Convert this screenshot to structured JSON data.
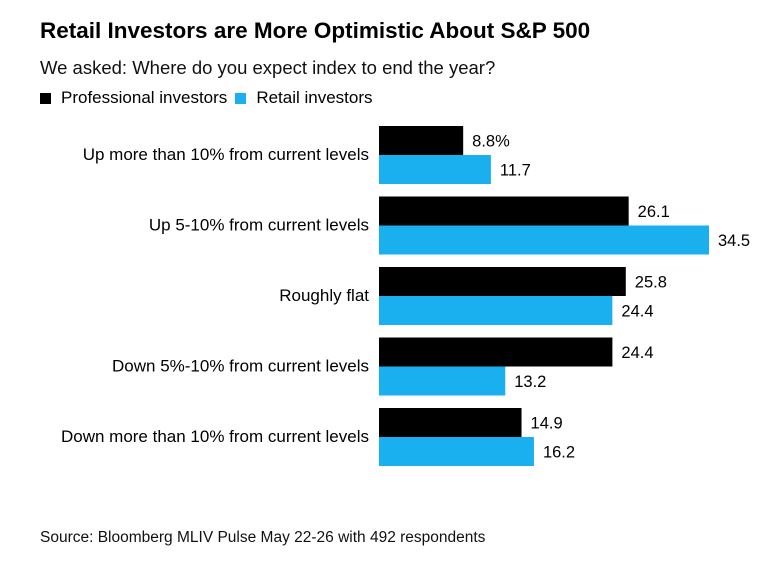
{
  "chart_data": {
    "type": "bar",
    "orientation": "horizontal",
    "title": "Retail Investors are More Optimistic About S&P 500",
    "subtitle": "We asked: Where do you expect index to end the year?",
    "categories": [
      "Up more than 10% from current levels",
      "Up 5-10% from current levels",
      "Roughly flat",
      "Down 5%-10% from current levels",
      "Down more than 10% from current levels"
    ],
    "series": [
      {
        "name": "Professional investors",
        "color": "#000000",
        "values": [
          8.8,
          26.1,
          25.8,
          24.4,
          14.9
        ],
        "labels": [
          "8.8%",
          "26.1",
          "25.8",
          "24.4",
          "14.9"
        ]
      },
      {
        "name": "Retail investors",
        "color": "#1ab0f0",
        "values": [
          11.7,
          34.5,
          24.4,
          13.2,
          16.2
        ],
        "labels": [
          "11.7",
          "34.5",
          "24.4",
          "13.2",
          "16.2"
        ]
      }
    ],
    "legend_position": "top-left",
    "grid": false,
    "xlim": [
      0,
      34.5
    ]
  },
  "source": "Source: Bloomberg MLIV Pulse May 22-26 with 492 respondents"
}
